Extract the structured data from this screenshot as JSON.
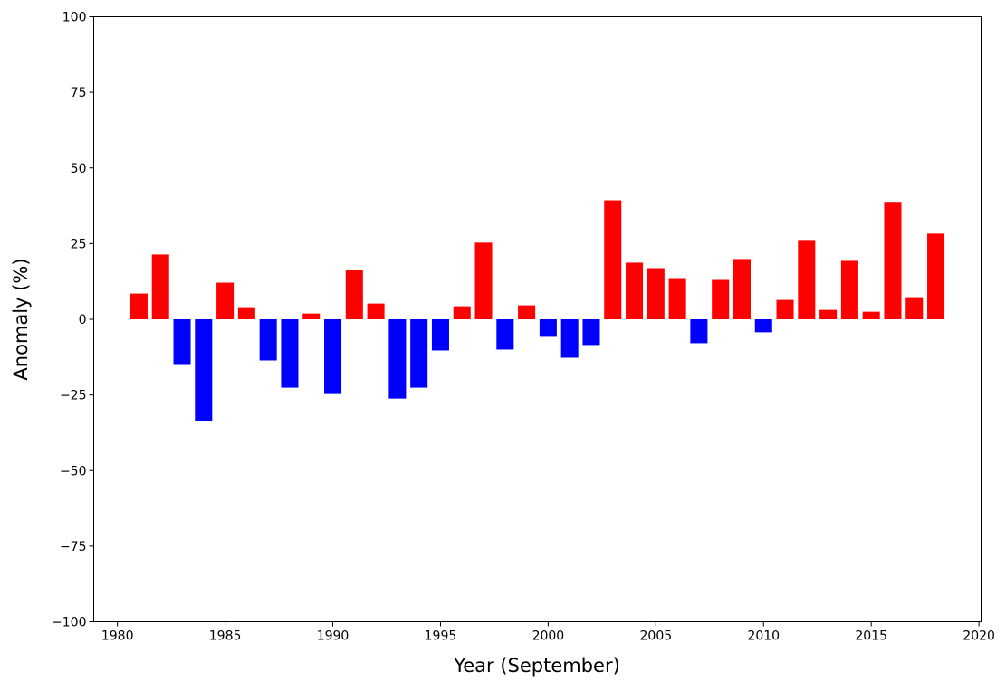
{
  "chart_data": {
    "type": "bar",
    "title": "",
    "xlabel": "Year (September)",
    "ylabel": "Anomaly (%)",
    "xlim": [
      1978.9,
      2020.1
    ],
    "ylim": [
      -100,
      100
    ],
    "xticks": [
      1980,
      1985,
      1990,
      1995,
      2000,
      2005,
      2010,
      2015,
      2020
    ],
    "yticks": [
      -100,
      -75,
      -50,
      -25,
      0,
      25,
      50,
      75,
      100
    ],
    "ytick_labels": [
      "−100",
      "−75",
      "−50",
      "−25",
      "0",
      "25",
      "50",
      "75",
      "100"
    ],
    "grid": false,
    "colors": {
      "positive": "#ff0000",
      "negative": "#0000ff"
    },
    "x": [
      1981,
      1982,
      1983,
      1984,
      1985,
      1986,
      1987,
      1988,
      1989,
      1990,
      1991,
      1992,
      1993,
      1994,
      1995,
      1996,
      1997,
      1998,
      1999,
      2000,
      2001,
      2002,
      2003,
      2004,
      2005,
      2006,
      2007,
      2008,
      2009,
      2010,
      2011,
      2012,
      2013,
      2014,
      2015,
      2016,
      2017,
      2018
    ],
    "values": [
      8.5,
      21.4,
      -15.1,
      -33.6,
      12.1,
      4.0,
      -13.6,
      -22.6,
      1.9,
      -24.7,
      16.3,
      5.2,
      -26.2,
      -22.6,
      -10.3,
      4.3,
      25.3,
      -10.0,
      4.6,
      -5.8,
      -12.7,
      -8.5,
      39.3,
      18.7,
      16.9,
      13.6,
      -7.9,
      13.0,
      19.9,
      -4.3,
      6.4,
      26.2,
      3.1,
      19.3,
      2.5,
      38.8,
      7.3,
      28.3
    ]
  }
}
